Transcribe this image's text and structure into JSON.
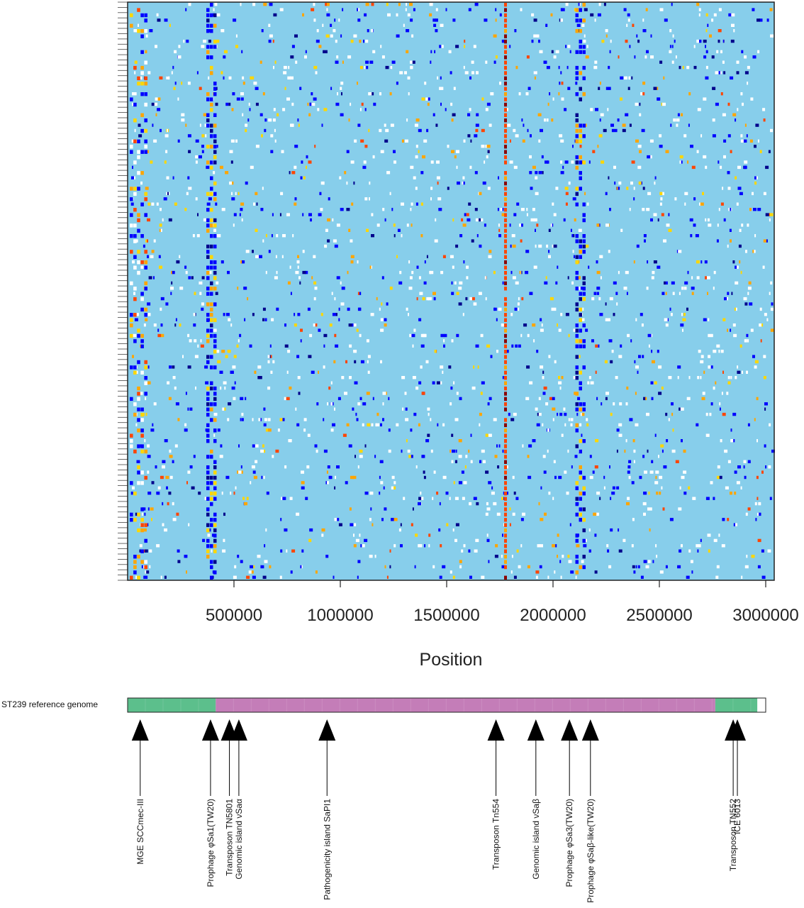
{
  "chart_data": [
    {
      "type": "heatmap",
      "xlabel": "Position",
      "x_ticks": [
        500000,
        1000000,
        1500000,
        2000000,
        2500000,
        3000000
      ],
      "x_tick_labels": [
        "500000",
        "1000000",
        "1500000",
        "2000000",
        "2500000",
        "3000000"
      ],
      "xlim": [
        0,
        3040000
      ],
      "n_rows": 110,
      "colors": {
        "background": "#87ceeb",
        "marks": [
          "#0000ff",
          "#00008b",
          "#ffffff",
          "#ffa500",
          "#ff4500",
          "#ffd700",
          "#8b0000"
        ]
      },
      "dense_columns": [
        {
          "start": 10000,
          "end": 95000,
          "intensity": 0.28,
          "palette": "mixed"
        },
        {
          "start": 370000,
          "end": 420000,
          "intensity": 0.55,
          "palette": "blue"
        },
        {
          "start": 1770000,
          "end": 1785000,
          "intensity": 0.95,
          "palette": "red"
        },
        {
          "start": 2105000,
          "end": 2155000,
          "intensity": 0.42,
          "palette": "blue"
        }
      ]
    },
    {
      "type": "table",
      "genome_label": "ST239 reference genome",
      "genome_length": 3040000,
      "segments": [
        {
          "start": 0,
          "end": 420000,
          "color": "#5cbf8c"
        },
        {
          "start": 420000,
          "end": 2800000,
          "color": "#c47db8"
        },
        {
          "start": 2800000,
          "end": 3000000,
          "color": "#5cbf8c"
        }
      ],
      "features": [
        {
          "label": "MGE SCCmec-III",
          "position": 60000
        },
        {
          "label": "Prophage φSa1(TW20)",
          "position": 395000
        },
        {
          "label": "Transposon TN5801",
          "position": 485000
        },
        {
          "label": "Genomic island νSaα",
          "position": 530000
        },
        {
          "label": "Pathogenicity island SaPI1",
          "position": 950000
        },
        {
          "label": "Transposon Tn554",
          "position": 1755000
        },
        {
          "label": "Genomic island νSaβ",
          "position": 1945000
        },
        {
          "label": "Prophage φSa3(TW20)",
          "position": 2105000
        },
        {
          "label": "Prophage φSaβ-like(TW20)",
          "position": 2205000
        },
        {
          "label": "Transposon TN552",
          "position": 2885000
        },
        {
          "label": "ICE 6013",
          "position": 2905000
        }
      ]
    }
  ]
}
